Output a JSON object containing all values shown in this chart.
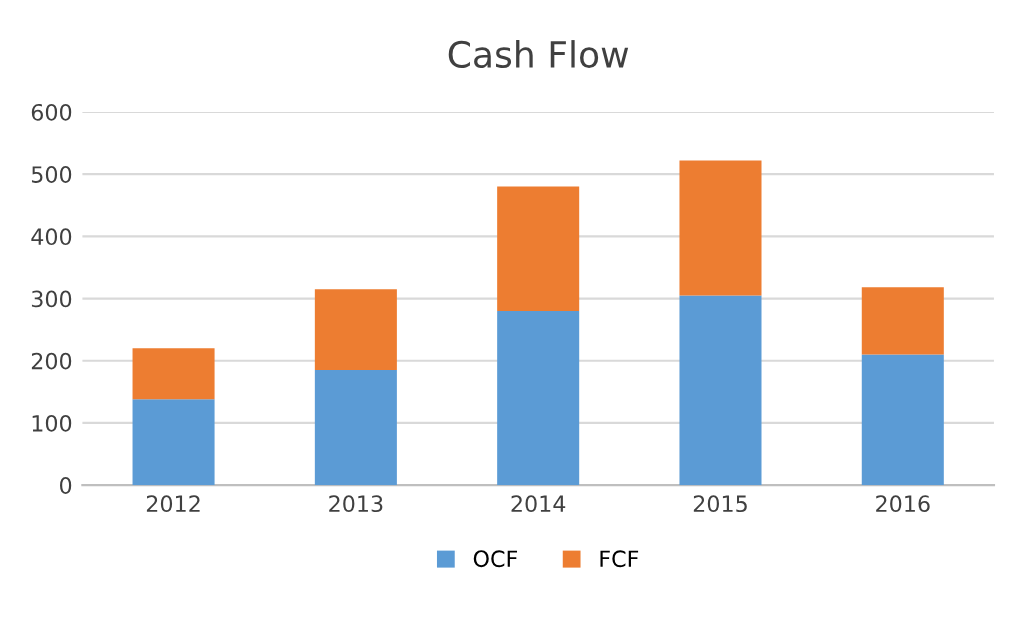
{
  "chart_data": {
    "type": "bar",
    "title": "Cash Flow",
    "categories": [
      "2012",
      "2013",
      "2014",
      "2015",
      "2016"
    ],
    "series": [
      {
        "name": "OCF",
        "color": "#5b9bd5",
        "values": [
          138,
          185,
          280,
          305,
          210
        ]
      },
      {
        "name": "FCF",
        "color": "#ed7d31",
        "values": [
          82,
          130,
          200,
          217,
          108
        ]
      }
    ],
    "stacked": true,
    "ylim": [
      0,
      600
    ],
    "yticks": [
      0,
      100,
      200,
      300,
      400,
      500,
      600
    ],
    "grid": "y",
    "legend": "bottom"
  }
}
